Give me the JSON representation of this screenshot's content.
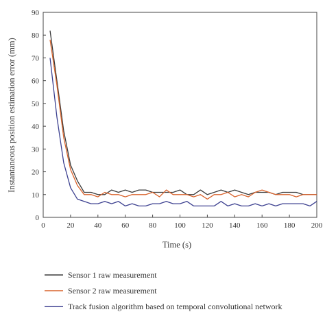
{
  "chart_data": {
    "type": "line",
    "title": "",
    "xlabel": "Time (s)",
    "ylabel": "Instantaneous position estimation error (mm)",
    "xlim": [
      0,
      200
    ],
    "ylim": [
      0,
      90
    ],
    "xticks": [
      0,
      20,
      40,
      60,
      80,
      100,
      120,
      140,
      160,
      180,
      200
    ],
    "yticks": [
      0,
      10,
      20,
      30,
      40,
      50,
      60,
      70,
      80,
      90
    ],
    "grid": false,
    "legend_position": "bottom",
    "series": [
      {
        "name": "Sensor 1 raw measurement",
        "color": "#3a3a3a",
        "x": [
          5,
          10,
          15,
          20,
          25,
          30,
          35,
          40,
          45,
          50,
          55,
          60,
          65,
          70,
          75,
          80,
          85,
          90,
          95,
          100,
          105,
          110,
          115,
          120,
          125,
          130,
          135,
          140,
          145,
          150,
          155,
          160,
          165,
          170,
          175,
          180,
          185,
          190,
          195,
          200
        ],
        "y": [
          82,
          60,
          38,
          23,
          16,
          11,
          11,
          10,
          10,
          12,
          11,
          12,
          11,
          12,
          12,
          11,
          11,
          11,
          11,
          12,
          10,
          10,
          12,
          10,
          11,
          12,
          11,
          12,
          11,
          10,
          11,
          11,
          11,
          10,
          11,
          11,
          11,
          10,
          10,
          10
        ]
      },
      {
        "name": "Sensor 2 raw measurement",
        "color": "#d9632c",
        "x": [
          5,
          10,
          15,
          20,
          25,
          30,
          35,
          40,
          45,
          50,
          55,
          60,
          65,
          70,
          75,
          80,
          85,
          90,
          95,
          100,
          105,
          110,
          115,
          120,
          125,
          130,
          135,
          140,
          145,
          150,
          155,
          160,
          165,
          170,
          175,
          180,
          185,
          190,
          195,
          200
        ],
        "y": [
          78,
          58,
          35,
          21,
          14,
          10,
          10,
          9,
          11,
          10,
          10,
          9,
          10,
          10,
          10,
          11,
          9,
          12,
          10,
          10,
          10,
          9,
          10,
          8,
          10,
          10,
          11,
          9,
          10,
          9,
          11,
          12,
          11,
          10,
          10,
          10,
          9,
          10,
          10,
          10
        ]
      },
      {
        "name": "Track fusion algorithm based on temporal convolutional network",
        "color": "#3b3f8f",
        "x": [
          5,
          10,
          15,
          20,
          25,
          30,
          35,
          40,
          45,
          50,
          55,
          60,
          65,
          70,
          75,
          80,
          85,
          90,
          95,
          100,
          105,
          110,
          115,
          120,
          125,
          130,
          135,
          140,
          145,
          150,
          155,
          160,
          165,
          170,
          175,
          180,
          185,
          190,
          195,
          200
        ],
        "y": [
          70,
          44,
          24,
          13,
          8,
          7,
          6,
          6,
          7,
          6,
          7,
          5,
          6,
          5,
          5,
          6,
          6,
          7,
          6,
          6,
          7,
          5,
          5,
          5,
          5,
          7,
          5,
          6,
          5,
          5,
          6,
          5,
          6,
          5,
          6,
          6,
          6,
          6,
          5,
          7
        ]
      }
    ]
  }
}
